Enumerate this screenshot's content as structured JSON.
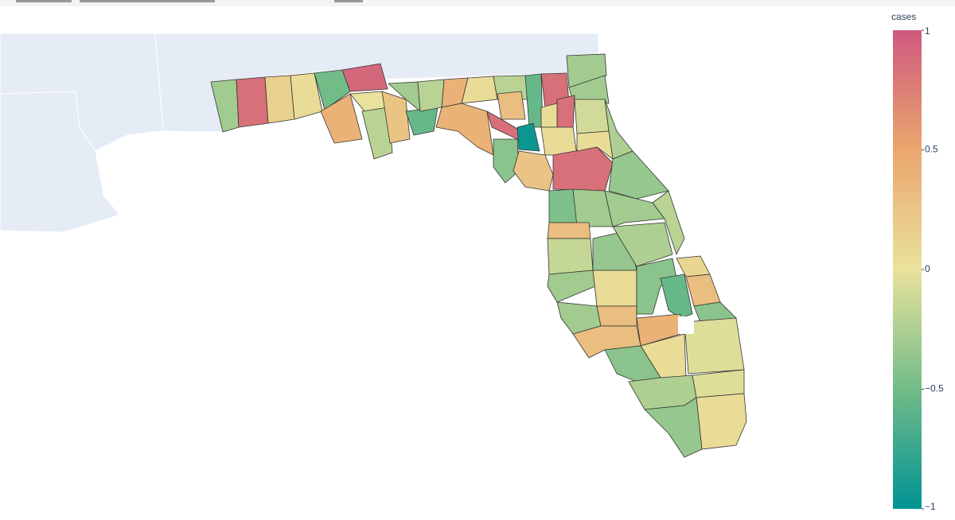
{
  "chart_data": {
    "type": "choropleth",
    "colorbar_title": "cases",
    "zlim": [
      -1,
      1
    ],
    "zticks": [
      {
        "value": -1,
        "label": "−1"
      },
      {
        "value": -0.5,
        "label": "−0.5"
      },
      0,
      0.5,
      1
    ],
    "colors": [
      "#009392",
      "#72bc88",
      "#e9e29c",
      "#eaa66e",
      "#cf597e"
    ],
    "values": [
      -0.3,
      0.85,
      0.15,
      0.05,
      -0.5,
      0.9,
      0.4,
      0.0,
      -0.2,
      0.25,
      -0.3,
      -0.55,
      -0.2,
      0.4,
      0.05,
      0.4,
      -0.2,
      0.3,
      0.85,
      -0.55,
      -0.95,
      -0.4,
      0.85,
      -0.3,
      -0.3,
      0.85,
      0.05,
      -0.1,
      -0.25,
      0.05,
      0.25,
      0.85,
      0.05,
      -0.35,
      -0.45,
      -0.3,
      -0.3,
      -0.2,
      0.3,
      -0.15,
      -0.35,
      -0.25,
      -0.3,
      0.05,
      -0.4,
      -0.55,
      0.1,
      0.3,
      -0.4,
      -0.3,
      0.3,
      0.3,
      0.4,
      0.05,
      -0.4,
      -0.05,
      -0.25,
      -0.05,
      0.05,
      -0.35
    ]
  }
}
